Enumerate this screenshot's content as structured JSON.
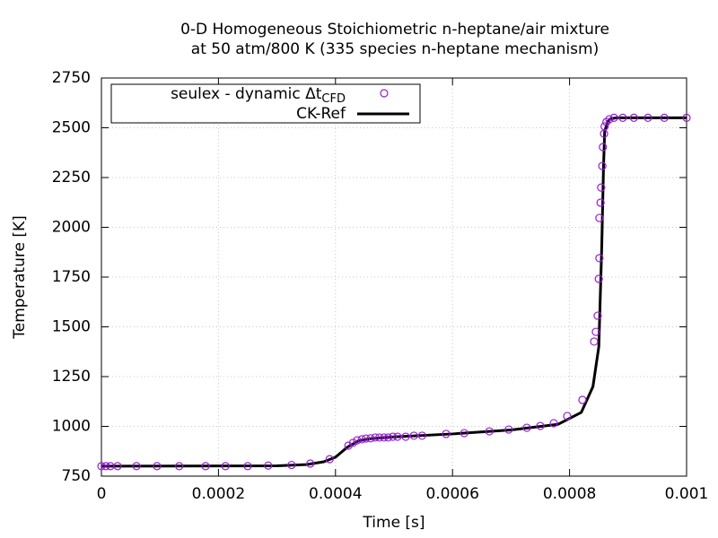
{
  "chart_data": {
    "type": "line",
    "title": [
      "0-D Homogeneous Stoichiometric n-heptane/air mixture",
      "at 50 atm/800 K (335 species n-heptane mechanism)"
    ],
    "xlabel": "Time [s]",
    "ylabel": "Temperature [K]",
    "xlim": [
      0,
      0.001
    ],
    "xticks": [
      0,
      0.0002,
      0.0004,
      0.0006,
      0.0008,
      0.001
    ],
    "ylim": [
      750,
      2750
    ],
    "yticks": [
      750,
      1000,
      1250,
      1500,
      1750,
      2000,
      2250,
      2500,
      2750
    ],
    "grid": true,
    "legend": "top-left",
    "series": [
      {
        "name": "seulex - dynamic Δt",
        "name_subscript": "CFD",
        "type": "scatter",
        "color": "#9a1ad9",
        "x": [
          0,
          7.7e-06,
          1.53e-05,
          2.76e-05,
          6e-05,
          9.5e-05,
          0.000133,
          0.000178,
          0.000212,
          0.00025,
          0.000285,
          0.000325,
          0.000357,
          0.00039,
          0.000422,
          0.00043,
          0.000437,
          0.000445,
          0.000452,
          0.00046,
          0.000468,
          0.000475,
          0.000483,
          0.00049,
          0.000498,
          0.000506,
          0.00052,
          0.000534,
          0.000548,
          0.000589,
          0.00062,
          0.000663,
          0.000696,
          0.000727,
          0.00075,
          0.000773,
          0.000796,
          0.000822,
          0.000842,
          0.000845,
          0.000848,
          0.00085,
          0.000851,
          0.000851,
          0.000853,
          0.000854,
          0.000856,
          0.000857,
          0.000859,
          0.00086,
          0.000863,
          0.000868,
          0.000876,
          0.000891,
          0.00091,
          0.000934,
          0.000962,
          0.001
        ],
        "values": [
          800,
          800,
          800,
          800,
          800,
          800,
          800,
          800,
          800,
          800,
          803,
          806,
          813,
          835,
          903,
          917,
          930,
          935,
          939,
          940,
          944,
          944,
          944,
          944,
          948,
          948,
          948,
          953,
          953,
          962,
          966,
          975,
          984,
          993,
          1002,
          1016,
          1052,
          1133,
          1426,
          1475,
          1556,
          1741,
          1845,
          2047,
          2124,
          2200,
          2308,
          2403,
          2470,
          2507,
          2529,
          2543,
          2550,
          2550,
          2550,
          2550,
          2550,
          2550
        ]
      },
      {
        "name": "CK-Ref",
        "type": "line",
        "color": "#000000",
        "x": [
          0,
          0.0003,
          0.00035,
          0.00038,
          0.0004,
          0.00042,
          0.00044,
          0.00046,
          0.0005,
          0.0006,
          0.0007,
          0.00078,
          0.00082,
          0.00084,
          0.00085,
          0.000855,
          0.000858,
          0.00086,
          0.000865,
          0.00087,
          0.00088,
          0.001
        ],
        "values": [
          800,
          802,
          808,
          822,
          845,
          895,
          928,
          938,
          947,
          962,
          982,
          1010,
          1070,
          1200,
          1400,
          1900,
          2300,
          2480,
          2530,
          2545,
          2550,
          2550
        ]
      }
    ]
  }
}
